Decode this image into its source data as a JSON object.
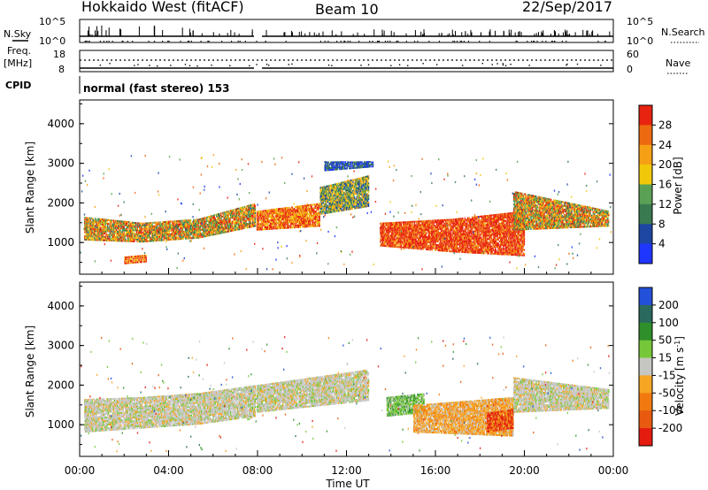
{
  "header": {
    "station": "Hokkaido West (fitACF)",
    "beam": "Beam 10",
    "date": "22/Sep/2017"
  },
  "top_strip": {
    "nsky_label": "N.Sky",
    "nsky_ticks": [
      "10^5",
      "10^0"
    ],
    "nsky_right_ticks": [
      "10^5",
      "10^0"
    ],
    "nsearch_label": "N.Search",
    "freq_label": "Freq.",
    "freq_unit": "[MHz]",
    "freq_ticks": [
      "18",
      "8"
    ],
    "nave_ticks": [
      "60",
      "0"
    ],
    "nave_label": "Nave",
    "cpid_label": "CPID",
    "cpid_text": "normal (fast stereo) 153"
  },
  "colors": {
    "power": [
      "#1f36ff",
      "#1d47a3",
      "#3a7a51",
      "#5aa155",
      "#f2c80a",
      "#f5a015",
      "#ee6a10",
      "#e8230f"
    ],
    "velocity": [
      "#2350d8",
      "#2a6a5e",
      "#2f8f2a",
      "#76c83a",
      "#c6c6c2",
      "#f5a623",
      "#f07a10",
      "#e85a10",
      "#e41c10"
    ]
  },
  "chart_data": [
    {
      "type": "heatmap",
      "panel": "power",
      "ylabel": "Slant Range [km]",
      "ylim": [
        200,
        4600
      ],
      "yticks": [
        "1000",
        "2000",
        "3000",
        "4000"
      ],
      "xlim": [
        0,
        24
      ],
      "colorbar": {
        "label": "Power [dB]",
        "ticks": [
          "4",
          "8",
          "12",
          "16",
          "20",
          "24",
          "28"
        ]
      },
      "bands": [
        {
          "t": [
            0.2,
            7.9
          ],
          "r0": [
            1050,
            1000,
            1100,
            1400
          ],
          "r1": [
            1650,
            1500,
            1600,
            2000
          ],
          "level": "medium-high"
        },
        {
          "t": [
            7.95,
            10.8
          ],
          "r0": [
            1300,
            1400
          ],
          "r1": [
            1800,
            2000
          ],
          "level": "high"
        },
        {
          "t": [
            10.8,
            13.0
          ],
          "r0": [
            1700,
            1900
          ],
          "r1": [
            2400,
            2700
          ],
          "level": "medium"
        },
        {
          "t": [
            11.0,
            13.2
          ],
          "r0": [
            2800,
            2900
          ],
          "r1": [
            3050,
            3050
          ],
          "level": "low"
        },
        {
          "t": [
            13.5,
            20.0
          ],
          "r0": [
            900,
            750,
            650
          ],
          "r1": [
            1500,
            1600,
            1800
          ],
          "level": "very-high"
        },
        {
          "t": [
            2.0,
            3.0
          ],
          "r0": [
            450,
            500
          ],
          "r1": [
            650,
            700
          ],
          "level": "high"
        },
        {
          "t": [
            19.5,
            23.8
          ],
          "r0": [
            1300,
            1400
          ],
          "r1": [
            2300,
            1800
          ],
          "level": "medium-high"
        }
      ]
    },
    {
      "type": "heatmap",
      "panel": "velocity",
      "xlabel": "Time UT",
      "xticks": [
        "00:00",
        "04:00",
        "08:00",
        "12:00",
        "16:00",
        "20:00",
        "00:00"
      ],
      "ylabel": "Slant Range [km]",
      "ylim": [
        200,
        4600
      ],
      "yticks": [
        "1000",
        "2000",
        "3000",
        "4000"
      ],
      "xlim": [
        0,
        24
      ],
      "colorbar": {
        "label": "Velocity [m s^-1]",
        "ticks": [
          "200",
          "100",
          "50",
          "15",
          "-15",
          "-50",
          "-100",
          "-200"
        ]
      },
      "bands": [
        {
          "t": [
            0.2,
            7.9
          ],
          "r0": [
            800,
            900,
            1000,
            1200
          ],
          "r1": [
            1650,
            1700,
            1800,
            2000
          ],
          "level": "near-zero"
        },
        {
          "t": [
            7.95,
            13.0
          ],
          "r0": [
            1300,
            1600
          ],
          "r1": [
            2000,
            2400
          ],
          "level": "near-zero"
        },
        {
          "t": [
            13.8,
            15.5
          ],
          "r0": [
            1200,
            1300
          ],
          "r1": [
            1700,
            1800
          ],
          "level": "positive"
        },
        {
          "t": [
            15.0,
            19.5
          ],
          "r0": [
            800,
            700
          ],
          "r1": [
            1500,
            1700
          ],
          "level": "negative"
        },
        {
          "t": [
            18.3,
            19.5
          ],
          "r0": [
            800,
            900
          ],
          "r1": [
            1300,
            1400
          ],
          "level": "strong-negative"
        },
        {
          "t": [
            19.5,
            23.8
          ],
          "r0": [
            1300,
            1400
          ],
          "r1": [
            2200,
            1900
          ],
          "level": "near-zero"
        }
      ]
    }
  ]
}
